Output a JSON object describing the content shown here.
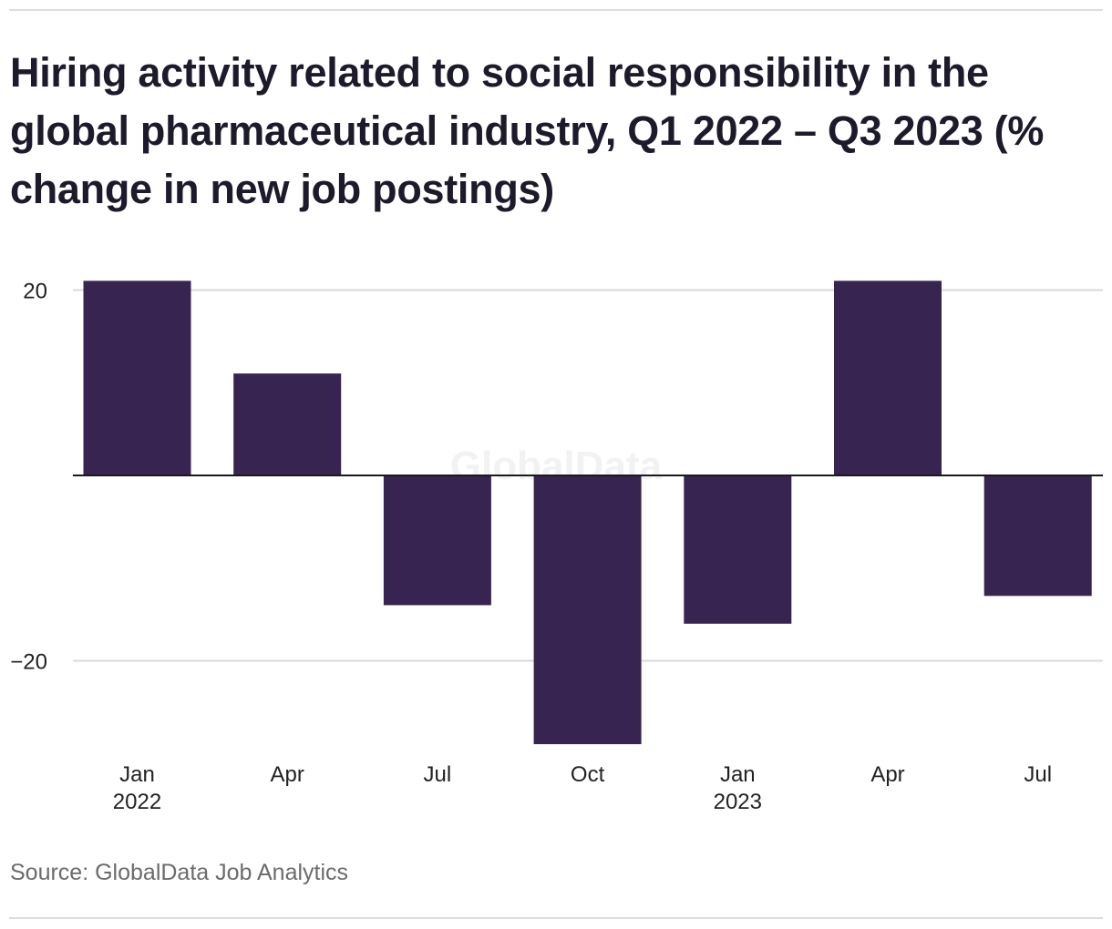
{
  "chart_data": {
    "type": "bar",
    "title": "Hiring activity related to social responsibility in the global pharmaceutical industry, Q1 2022 – Q3 2023 (% change in new job postings)",
    "categories": [
      "Jan 2022",
      "Apr",
      "Jul",
      "Oct",
      "Jan 2023",
      "Apr",
      "Jul"
    ],
    "x_tick_labels": [
      {
        "line1": "Jan",
        "line2": "2022"
      },
      {
        "line1": "Apr",
        "line2": ""
      },
      {
        "line1": "Jul",
        "line2": ""
      },
      {
        "line1": "Oct",
        "line2": ""
      },
      {
        "line1": "Jan",
        "line2": "2023"
      },
      {
        "line1": "Apr",
        "line2": ""
      },
      {
        "line1": "Jul",
        "line2": ""
      }
    ],
    "values": [
      21,
      11,
      -14,
      -29,
      -16,
      21,
      -13
    ],
    "ylim": [
      -30,
      22
    ],
    "yticks": [
      20,
      0,
      -20
    ],
    "ytick_labels": [
      "20",
      "",
      "−20"
    ],
    "grid": true,
    "bar_color": "#372451",
    "xlabel": "",
    "ylabel": ""
  },
  "watermark": "GlobalData",
  "source": "Source: GlobalData Job Analytics"
}
